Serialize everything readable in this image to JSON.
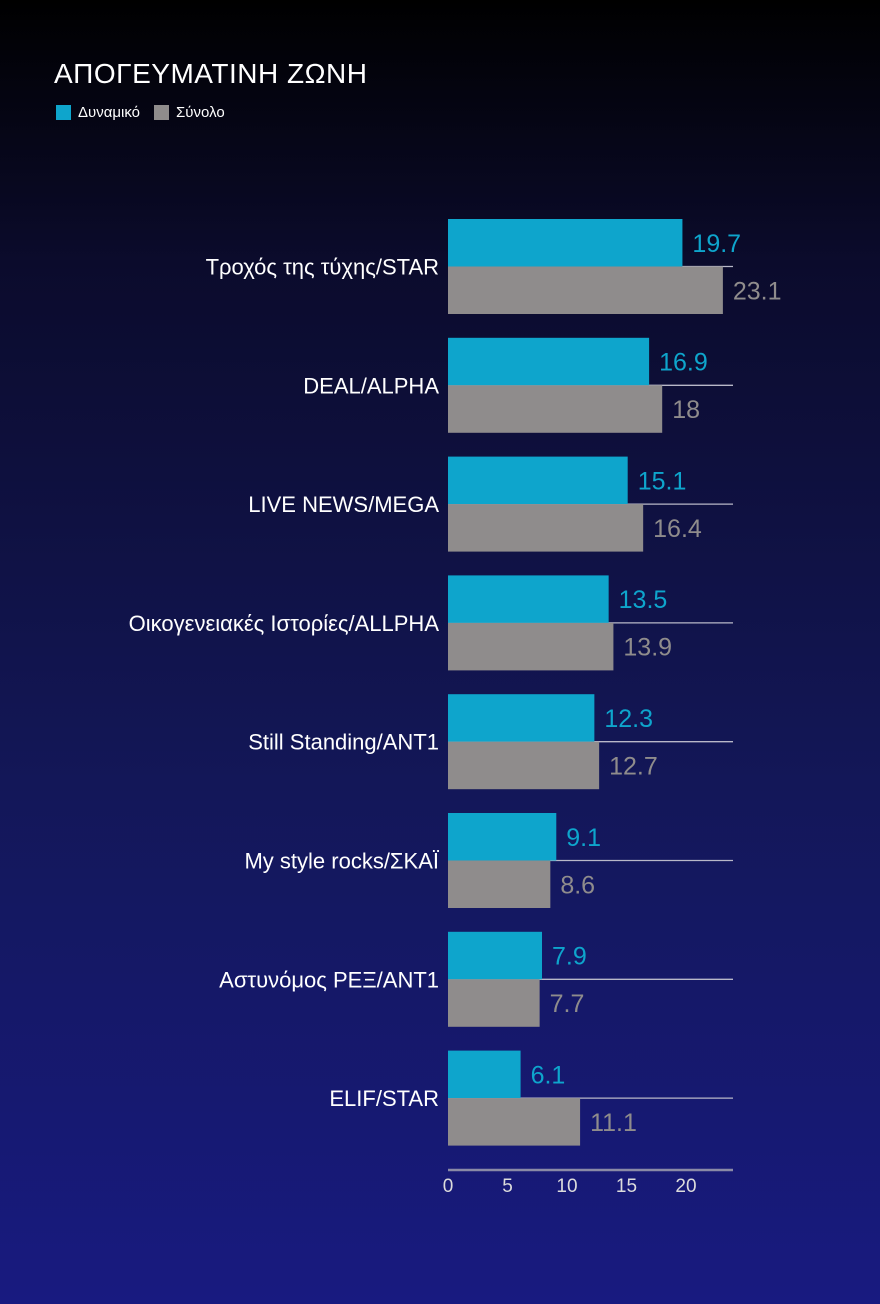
{
  "chart_data": {
    "type": "bar",
    "orientation": "horizontal",
    "title": "ΑΠΟΓΕΥΜΑΤΙΝΗ ΖΩΝΗ",
    "categories": [
      "Τροχός της τύχης/STAR",
      "DEAL/ALPHA",
      "LIVE NEWS/MEGA",
      "Οικογενειακές Ιστορίες/ALLPHA",
      "Still Standing/ANT1",
      "My style rocks/ΣΚΑΪ",
      "Αστυνόμος ΡΕΞ/ANT1",
      "ELIF/STAR"
    ],
    "series": [
      {
        "name": "Δυναμικό",
        "color": "#0ea5cc",
        "values": [
          19.7,
          16.9,
          15.1,
          13.5,
          12.3,
          9.1,
          7.9,
          6.1
        ]
      },
      {
        "name": "Σύνολο",
        "color": "#8f8c8c",
        "values": [
          23.1,
          18,
          16.4,
          13.9,
          12.7,
          8.6,
          7.7,
          11.1
        ]
      }
    ],
    "value_labels": [
      [
        "19.7",
        "16.9",
        "15.1",
        "13.5",
        "12.3",
        "9.1",
        "7.9",
        "6.1"
      ],
      [
        "23.1",
        "18",
        "16.4",
        "13.9",
        "12.7",
        "8.6",
        "7.7",
        "11.1"
      ]
    ],
    "x_ticks": [
      "0",
      "5",
      "10",
      "15",
      "20"
    ],
    "xlim": [
      0,
      24
    ],
    "legend_position": "top-left",
    "grid": false
  }
}
